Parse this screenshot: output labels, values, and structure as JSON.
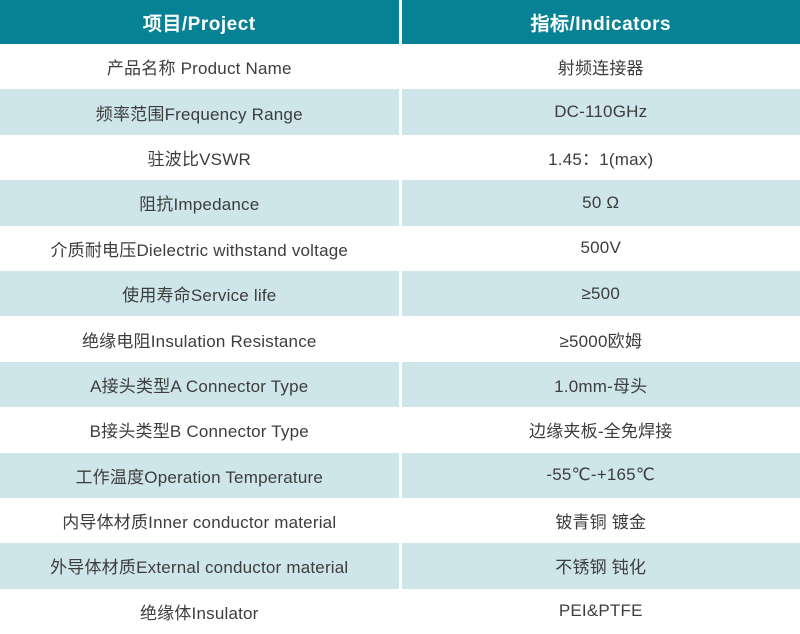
{
  "table": {
    "header": {
      "project": "项目/Project",
      "indicators": "指标/Indicators"
    },
    "rows": [
      {
        "project": "产品名称 Product Name",
        "indicator": "射频连接器"
      },
      {
        "project": "频率范围Frequency Range",
        "indicator": "DC-110GHz"
      },
      {
        "project": "驻波比VSWR",
        "indicator": "1.45：1(max)"
      },
      {
        "project": "阻抗Impedance",
        "indicator": "50 Ω"
      },
      {
        "project": "介质耐电压Dielectric withstand voltage",
        "indicator": "500V"
      },
      {
        "project": "使用寿命Service life",
        "indicator": "≥500"
      },
      {
        "project": "绝缘电阻Insulation Resistance",
        "indicator": "≥5000欧姆"
      },
      {
        "project": "A接头类型A Connector Type",
        "indicator": "1.0mm-母头"
      },
      {
        "project": "B接头类型B Connector Type",
        "indicator": "边缘夹板-全免焊接"
      },
      {
        "project": "工作温度Operation Temperature",
        "indicator": "-55℃-+165℃"
      },
      {
        "project": "内导体材质Inner conductor material",
        "indicator": "铍青铜 镀金"
      },
      {
        "project": "外导体材质External conductor material",
        "indicator": "不锈钢 钝化"
      },
      {
        "project": "绝缘体Insulator",
        "indicator": "PEI&PTFE"
      }
    ]
  },
  "colors": {
    "header_bg": "#078294",
    "header_text": "#ffffff",
    "row_bg": "#ffffff",
    "row_alt_bg": "#cee5e9",
    "body_text": "#3d3d3d",
    "divider": "#ffffff"
  }
}
